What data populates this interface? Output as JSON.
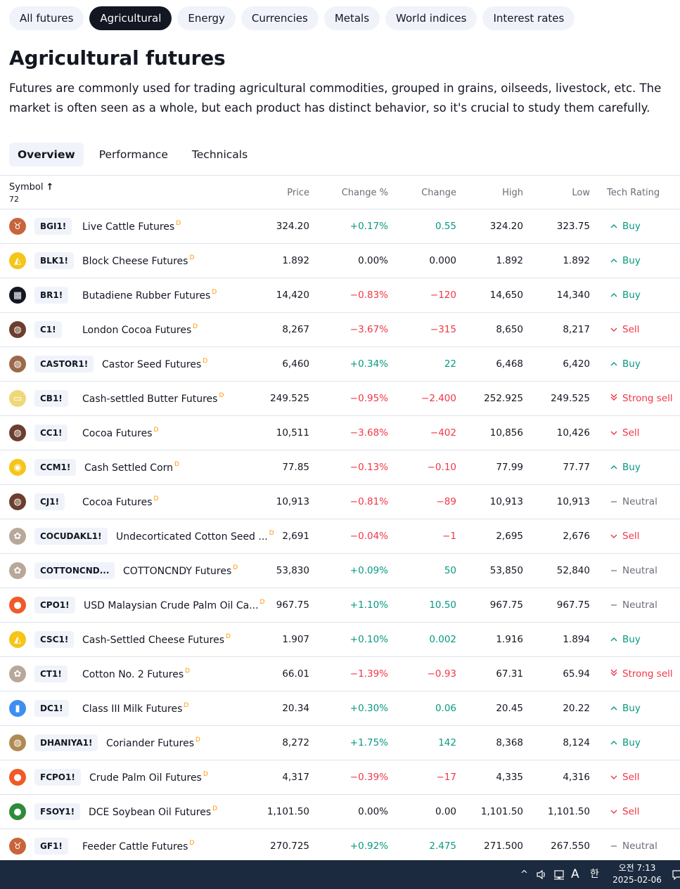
{
  "category_tabs": [
    {
      "label": "All futures",
      "active": false
    },
    {
      "label": "Agricultural",
      "active": true
    },
    {
      "label": "Energy",
      "active": false
    },
    {
      "label": "Currencies",
      "active": false
    },
    {
      "label": "Metals",
      "active": false
    },
    {
      "label": "World indices",
      "active": false
    },
    {
      "label": "Interest rates",
      "active": false
    }
  ],
  "page_title": "Agricultural futures",
  "description": "Futures are commonly used for trading agricultural commodities, grouped in grains, oilseeds, livestock, etc. The market is often seen as a whole, but each product has distinct behavior, so it's crucial to study them carefully.",
  "view_tabs": [
    {
      "label": "Overview",
      "active": true
    },
    {
      "label": "Performance",
      "active": false
    },
    {
      "label": "Technicals",
      "active": false
    }
  ],
  "table": {
    "headers": {
      "symbol": "Symbol",
      "symbol_count": "72",
      "sort_arrow": "↑",
      "price": "Price",
      "change_pct": "Change %",
      "change": "Change",
      "high": "High",
      "low": "Low",
      "rating": "Tech Rating"
    },
    "delay_marker": "D",
    "colors": {
      "positive": "#089981",
      "negative": "#f23645",
      "neutral": "#131722",
      "rating_neutral": "#6a6d78"
    },
    "rows": [
      {
        "ticker": "BGI1!",
        "name": "Live Cattle Futures",
        "price": "324.20",
        "change_pct": "+0.17%",
        "change": "0.55",
        "high": "324.20",
        "low": "323.75",
        "rating": "Buy",
        "trend": "pos",
        "rating_type": "buy",
        "icon": "cattle-icon",
        "glyph": "♉",
        "logo_color": "#c8643c"
      },
      {
        "ticker": "BLK1!",
        "name": "Block Cheese Futures",
        "price": "1.892",
        "change_pct": "0.00%",
        "change": "0.000",
        "high": "1.892",
        "low": "1.892",
        "rating": "Buy",
        "trend": "neu",
        "rating_type": "buy",
        "icon": "cheese-icon",
        "glyph": "◭",
        "logo_color": "#f5c518"
      },
      {
        "ticker": "BR1!",
        "name": "Butadiene Rubber Futures",
        "price": "14,420",
        "change_pct": "−0.83%",
        "change": "−120",
        "high": "14,650",
        "low": "14,340",
        "rating": "Buy",
        "trend": "neg",
        "rating_type": "buy",
        "icon": "rubber-icon",
        "glyph": "▦",
        "logo_color": "#131722"
      },
      {
        "ticker": "C1!",
        "name": "London Cocoa Futures",
        "price": "8,267",
        "change_pct": "−3.67%",
        "change": "−315",
        "high": "8,650",
        "low": "8,217",
        "rating": "Sell",
        "trend": "neg",
        "rating_type": "sell",
        "icon": "cocoa-icon",
        "glyph": "◍",
        "logo_color": "#6b3e2e"
      },
      {
        "ticker": "CASTOR1!",
        "name": "Castor Seed Futures",
        "price": "6,460",
        "change_pct": "+0.34%",
        "change": "22",
        "high": "6,468",
        "low": "6,420",
        "rating": "Buy",
        "trend": "pos",
        "rating_type": "buy",
        "icon": "seed-icon",
        "glyph": "◍",
        "logo_color": "#9a6a4a"
      },
      {
        "ticker": "CB1!",
        "name": "Cash-settled Butter Futures",
        "price": "249.525",
        "change_pct": "−0.95%",
        "change": "−2.400",
        "high": "252.925",
        "low": "249.525",
        "rating": "Strong sell",
        "trend": "neg",
        "rating_type": "strong-sell",
        "icon": "butter-icon",
        "glyph": "▭",
        "logo_color": "#f0d878"
      },
      {
        "ticker": "CC1!",
        "name": "Cocoa Futures",
        "price": "10,511",
        "change_pct": "−3.68%",
        "change": "−402",
        "high": "10,856",
        "low": "10,426",
        "rating": "Sell",
        "trend": "neg",
        "rating_type": "sell",
        "icon": "cocoa-icon",
        "glyph": "◍",
        "logo_color": "#6b3e2e"
      },
      {
        "ticker": "CCM1!",
        "name": "Cash Settled Corn",
        "price": "77.85",
        "change_pct": "−0.13%",
        "change": "−0.10",
        "high": "77.99",
        "low": "77.77",
        "rating": "Buy",
        "trend": "neg",
        "rating_type": "buy",
        "icon": "corn-icon",
        "glyph": "◉",
        "logo_color": "#f5c518"
      },
      {
        "ticker": "CJ1!",
        "name": "Cocoa Futures",
        "price": "10,913",
        "change_pct": "−0.81%",
        "change": "−89",
        "high": "10,913",
        "low": "10,913",
        "rating": "Neutral",
        "trend": "neg",
        "rating_type": "neutral",
        "icon": "cocoa-icon",
        "glyph": "◍",
        "logo_color": "#6b3e2e"
      },
      {
        "ticker": "COCUDAKL1!",
        "name": "Undecorticated Cotton Seed ...",
        "price": "2,691",
        "change_pct": "−0.04%",
        "change": "−1",
        "high": "2,695",
        "low": "2,676",
        "rating": "Sell",
        "trend": "neg",
        "rating_type": "sell",
        "icon": "cotton-icon",
        "glyph": "✿",
        "logo_color": "#b8a89a"
      },
      {
        "ticker": "COTTONCND...",
        "name": "COTTONCNDY Futures",
        "price": "53,830",
        "change_pct": "+0.09%",
        "change": "50",
        "high": "53,850",
        "low": "52,840",
        "rating": "Neutral",
        "trend": "pos",
        "rating_type": "neutral",
        "icon": "cotton-icon",
        "glyph": "✿",
        "logo_color": "#b8a89a"
      },
      {
        "ticker": "CPO1!",
        "name": "USD Malaysian Crude Palm Oil Ca...",
        "price": "967.75",
        "change_pct": "+1.10%",
        "change": "10.50",
        "high": "967.75",
        "low": "967.75",
        "rating": "Neutral",
        "trend": "pos",
        "rating_type": "neutral",
        "icon": "oil-drop-icon",
        "glyph": "●",
        "logo_color": "#f05a28"
      },
      {
        "ticker": "CSC1!",
        "name": "Cash-Settled Cheese Futures",
        "price": "1.907",
        "change_pct": "+0.10%",
        "change": "0.002",
        "high": "1.916",
        "low": "1.894",
        "rating": "Buy",
        "trend": "pos",
        "rating_type": "buy",
        "icon": "cheese-icon",
        "glyph": "◭",
        "logo_color": "#f5c518"
      },
      {
        "ticker": "CT1!",
        "name": "Cotton No. 2 Futures",
        "price": "66.01",
        "change_pct": "−1.39%",
        "change": "−0.93",
        "high": "67.31",
        "low": "65.94",
        "rating": "Strong sell",
        "trend": "neg",
        "rating_type": "strong-sell",
        "icon": "cotton-icon",
        "glyph": "✿",
        "logo_color": "#b8a89a"
      },
      {
        "ticker": "DC1!",
        "name": "Class III Milk Futures",
        "price": "20.34",
        "change_pct": "+0.30%",
        "change": "0.06",
        "high": "20.45",
        "low": "20.22",
        "rating": "Buy",
        "trend": "pos",
        "rating_type": "buy",
        "icon": "milk-icon",
        "glyph": "▮",
        "logo_color": "#3d8ef0"
      },
      {
        "ticker": "DHANIYA1!",
        "name": "Coriander Futures",
        "price": "8,272",
        "change_pct": "+1.75%",
        "change": "142",
        "high": "8,368",
        "low": "8,124",
        "rating": "Buy",
        "trend": "pos",
        "rating_type": "buy",
        "icon": "seed-icon",
        "glyph": "◍",
        "logo_color": "#b08a55"
      },
      {
        "ticker": "FCPO1!",
        "name": "Crude Palm Oil Futures",
        "price": "4,317",
        "change_pct": "−0.39%",
        "change": "−17",
        "high": "4,335",
        "low": "4,316",
        "rating": "Sell",
        "trend": "neg",
        "rating_type": "sell",
        "icon": "oil-drop-icon",
        "glyph": "●",
        "logo_color": "#f05a28"
      },
      {
        "ticker": "FSOY1!",
        "name": "DCE Soybean Oil Futures",
        "price": "1,101.50",
        "change_pct": "0.00%",
        "change": "0.00",
        "high": "1,101.50",
        "low": "1,101.50",
        "rating": "Sell",
        "trend": "neu",
        "rating_type": "sell",
        "icon": "oil-drop-icon",
        "glyph": "●",
        "logo_color": "#2e8b3a"
      },
      {
        "ticker": "GF1!",
        "name": "Feeder Cattle Futures",
        "price": "270.725",
        "change_pct": "+0.92%",
        "change": "2.475",
        "high": "271.500",
        "low": "267.550",
        "rating": "Neutral",
        "trend": "pos",
        "rating_type": "neutral",
        "icon": "cattle-icon",
        "glyph": "♉",
        "logo_color": "#c8643c"
      }
    ]
  },
  "taskbar": {
    "tray_chevron": "^",
    "ime_letter": "A",
    "ime_korean": "한",
    "time": "오전 7:13",
    "date": "2025-02-06"
  }
}
